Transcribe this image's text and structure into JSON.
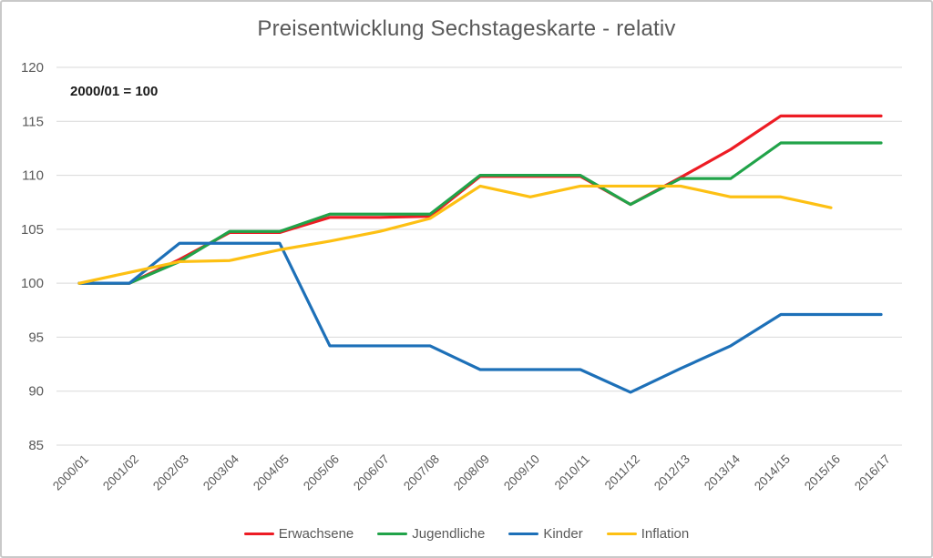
{
  "title": "Preisentwicklung Sechstageskarte - relativ",
  "annotation": "2000/01 = 100",
  "chart_data": {
    "type": "line",
    "title": "Preisentwicklung Sechstageskarte - relativ",
    "annotation": "2000/01 = 100",
    "xlabel": "",
    "ylabel": "",
    "ylim": [
      85,
      120
    ],
    "y_ticks": [
      120,
      115,
      110,
      105,
      100,
      95,
      90,
      85
    ],
    "grid": true,
    "legend_position": "bottom",
    "categories": [
      "2000/01",
      "2001/02",
      "2002/03",
      "2003/04",
      "2004/05",
      "2005/06",
      "2006/07",
      "2007/08",
      "2008/09",
      "2009/10",
      "2010/11",
      "2011/12",
      "2012/13",
      "2013/14",
      "2014/15",
      "2015/16",
      "2016/17"
    ],
    "series": [
      {
        "name": "Erwachsene",
        "color": "#ed1c24",
        "values": [
          100,
          100,
          102.2,
          104.7,
          104.7,
          106.1,
          106.1,
          106.2,
          109.9,
          109.9,
          109.9,
          107.3,
          109.8,
          112.4,
          115.5,
          115.5,
          115.5
        ]
      },
      {
        "name": "Jugendliche",
        "color": "#21a349",
        "values": [
          100,
          100,
          102,
          104.8,
          104.8,
          106.4,
          106.4,
          106.4,
          110,
          110,
          110,
          107.3,
          109.7,
          109.7,
          113,
          113,
          113
        ]
      },
      {
        "name": "Kinder",
        "color": "#1d70b8",
        "values": [
          100,
          100,
          103.7,
          103.7,
          103.7,
          94.2,
          94.2,
          94.2,
          92,
          92,
          92,
          89.9,
          92.1,
          94.2,
          97.1,
          97.1,
          97.1
        ]
      },
      {
        "name": "Inflation",
        "color": "#fdc013",
        "values": [
          100,
          101,
          102,
          102.1,
          103.1,
          103.9,
          104.8,
          106,
          109,
          108,
          109,
          109,
          109,
          108,
          108,
          107,
          null
        ]
      }
    ],
    "colors": {
      "grid": "#d9d9d9",
      "axis_text": "#595959",
      "title_text": "#595959",
      "annotation_text": "#1a1a1a"
    }
  }
}
